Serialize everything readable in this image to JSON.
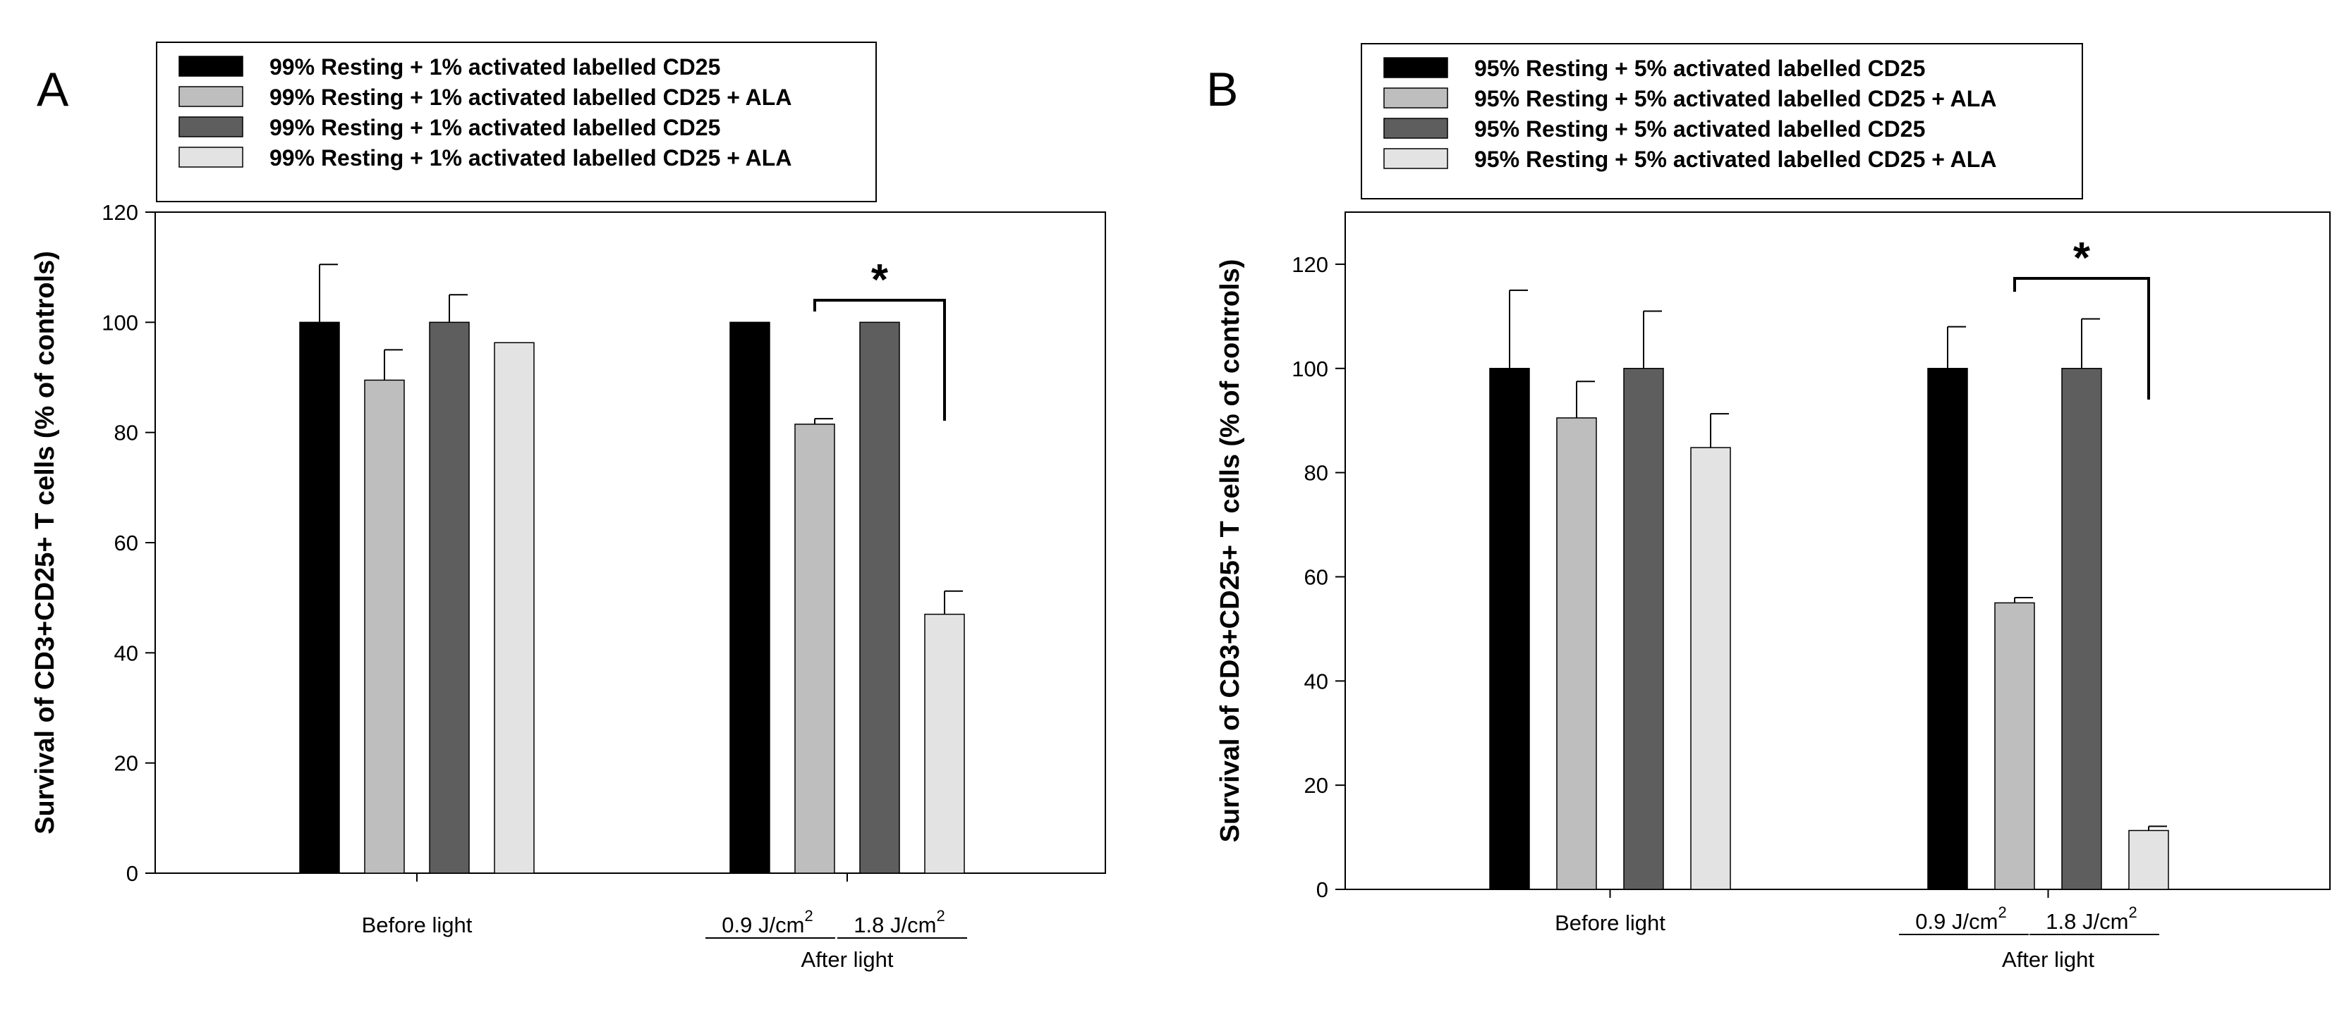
{
  "chart_data": [
    {
      "type": "bar",
      "panel": "A",
      "ylabel": "Survival of CD3+CD25+ T cells (% of controls)",
      "ylim": [
        0,
        120
      ],
      "yticks": [
        "0",
        "20",
        "40",
        "60",
        "80",
        "100",
        "120"
      ],
      "groups": [
        {
          "label": "Before light",
          "sub": []
        },
        {
          "label": "After light",
          "sub": [
            {
              "text": "0.9 J/cm",
              "sup": "2"
            },
            {
              "text": "1.8 J/cm",
              "sup": "2"
            }
          ]
        }
      ],
      "series": [
        {
          "name": "99% Resting + 1% activated labelled CD25",
          "color": "#000000",
          "values": [
            100,
            100
          ],
          "errors": [
            10.5,
            0
          ]
        },
        {
          "name": "99% Resting + 1% activated labelled CD25 + ALA",
          "color": "#bebebe",
          "values": [
            89.5,
            81.5
          ],
          "errors": [
            5.5,
            1
          ]
        },
        {
          "name": "99% Resting + 1% activated labelled CD25",
          "color": "#5e5e5e",
          "values": [
            100,
            100
          ],
          "errors": [
            5,
            0
          ]
        },
        {
          "name": "99% Resting + 1% activated labelled CD25 + ALA",
          "color": "#e3e3e3",
          "values": [
            96.3,
            47
          ],
          "errors": [
            0,
            4.2
          ]
        }
      ],
      "significance": {
        "label": "*",
        "group": 1,
        "from_series": 1,
        "to_series": 3
      }
    },
    {
      "type": "bar",
      "panel": "B",
      "ylabel": "Survival of CD3+CD25+ T cells (% of controls)",
      "ylim": [
        0,
        130
      ],
      "yticks": [
        "0",
        "20",
        "40",
        "60",
        "80",
        "100",
        "120"
      ],
      "groups": [
        {
          "label": "Before light",
          "sub": []
        },
        {
          "label": "After light",
          "sub": [
            {
              "text": "0.9 J/cm",
              "sup": "2"
            },
            {
              "text": "1.8 J/cm",
              "sup": "2"
            }
          ]
        }
      ],
      "series": [
        {
          "name": "95% Resting + 5% activated labelled CD25",
          "color": "#000000",
          "values": [
            100,
            100
          ],
          "errors": [
            15,
            8
          ]
        },
        {
          "name": "95% Resting + 5% activated labelled CD25 + ALA",
          "color": "#bebebe",
          "values": [
            90.5,
            55
          ],
          "errors": [
            7,
            1
          ]
        },
        {
          "name": "95% Resting + 5% activated labelled CD25",
          "color": "#5e5e5e",
          "values": [
            100,
            100
          ],
          "errors": [
            11,
            9.5
          ]
        },
        {
          "name": "95% Resting + 5% activated labelled CD25 + ALA",
          "color": "#e3e3e3",
          "values": [
            84.8,
            11.3
          ],
          "errors": [
            6.5,
            0.8
          ]
        }
      ],
      "significance": {
        "label": "*",
        "group": 1,
        "from_series": 1,
        "to_series": 3
      }
    }
  ]
}
